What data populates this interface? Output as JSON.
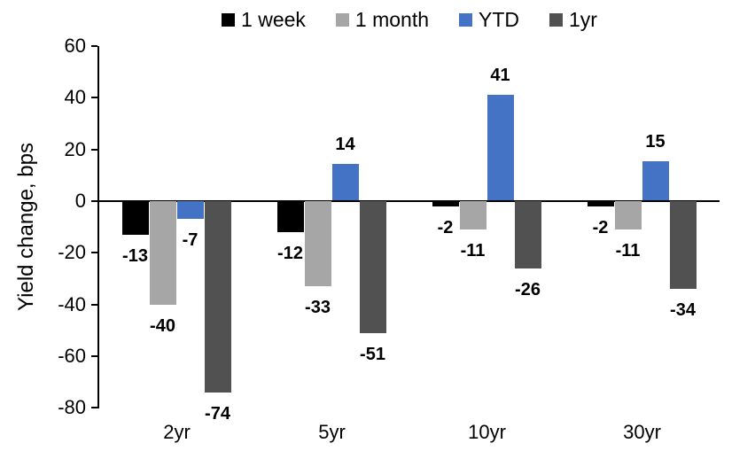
{
  "chart_data": {
    "type": "bar",
    "title": "",
    "ylabel": "Yield change, bps",
    "xlabel": "",
    "categories": [
      "2yr",
      "5yr",
      "10yr",
      "30yr"
    ],
    "series": [
      {
        "name": "1 week",
        "color": "#000000",
        "values": [
          -13,
          -12,
          -2,
          -2
        ]
      },
      {
        "name": "1 month",
        "color": "#A6A6A6",
        "values": [
          -40,
          -33,
          -11,
          -11
        ]
      },
      {
        "name": "YTD",
        "color": "#4472C4",
        "values": [
          -7,
          14,
          41,
          15
        ]
      },
      {
        "name": "1yr",
        "color": "#515151",
        "values": [
          -74,
          -51,
          -26,
          -34
        ]
      }
    ],
    "ylim": [
      -80,
      60
    ],
    "ytick_step": 20,
    "yticks": [
      60,
      40,
      20,
      0,
      -20,
      -40,
      -60,
      -80
    ],
    "legend_position": "top",
    "grid": false,
    "data_labels": "outside-end",
    "axis_color": "#000000",
    "background": "#FFFFFF"
  }
}
